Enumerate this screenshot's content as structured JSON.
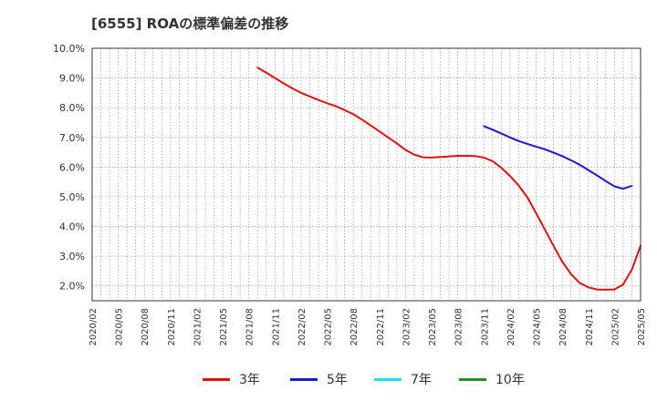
{
  "chart_data": {
    "type": "line",
    "title": "[6555]  ROAの標準偏差の推移",
    "xlabel": "",
    "ylabel": "",
    "ylim": [
      1.5,
      10.0
    ],
    "yticks": [
      2.0,
      3.0,
      4.0,
      5.0,
      6.0,
      7.0,
      8.0,
      9.0,
      10.0
    ],
    "ytick_labels": [
      "2.0%",
      "3.0%",
      "4.0%",
      "5.0%",
      "6.0%",
      "7.0%",
      "8.0%",
      "9.0%",
      "10.0%"
    ],
    "x_range": [
      "2020/02",
      "2025/05"
    ],
    "xtick_labels": [
      "2020/02",
      "2020/05",
      "2020/08",
      "2020/11",
      "2021/02",
      "2021/05",
      "2021/08",
      "2021/11",
      "2022/02",
      "2022/05",
      "2022/08",
      "2022/11",
      "2023/02",
      "2023/05",
      "2023/08",
      "2023/11",
      "2024/02",
      "2024/05",
      "2024/08",
      "2024/11",
      "2025/02",
      "2025/05"
    ],
    "grid": true,
    "legend_position": "bottom",
    "series": [
      {
        "name": "3年",
        "color": "#dd1111",
        "points": [
          [
            "2021/09",
            9.35
          ],
          [
            "2021/10",
            9.18
          ],
          [
            "2021/11",
            9.0
          ],
          [
            "2021/12",
            8.82
          ],
          [
            "2022/01",
            8.65
          ],
          [
            "2022/02",
            8.5
          ],
          [
            "2022/03",
            8.38
          ],
          [
            "2022/04",
            8.26
          ],
          [
            "2022/05",
            8.15
          ],
          [
            "2022/06",
            8.05
          ],
          [
            "2022/07",
            7.92
          ],
          [
            "2022/08",
            7.78
          ],
          [
            "2022/09",
            7.6
          ],
          [
            "2022/10",
            7.4
          ],
          [
            "2022/11",
            7.2
          ],
          [
            "2022/12",
            7.0
          ],
          [
            "2023/01",
            6.8
          ],
          [
            "2023/02",
            6.58
          ],
          [
            "2023/03",
            6.42
          ],
          [
            "2023/04",
            6.33
          ],
          [
            "2023/05",
            6.32
          ],
          [
            "2023/06",
            6.34
          ],
          [
            "2023/07",
            6.36
          ],
          [
            "2023/08",
            6.38
          ],
          [
            "2023/09",
            6.38
          ],
          [
            "2023/10",
            6.37
          ],
          [
            "2023/11",
            6.32
          ],
          [
            "2023/12",
            6.2
          ],
          [
            "2024/01",
            5.98
          ],
          [
            "2024/02",
            5.7
          ],
          [
            "2024/03",
            5.38
          ],
          [
            "2024/04",
            4.98
          ],
          [
            "2024/05",
            4.45
          ],
          [
            "2024/06",
            3.9
          ],
          [
            "2024/07",
            3.35
          ],
          [
            "2024/08",
            2.82
          ],
          [
            "2024/09",
            2.4
          ],
          [
            "2024/10",
            2.1
          ],
          [
            "2024/11",
            1.95
          ],
          [
            "2024/12",
            1.88
          ],
          [
            "2025/01",
            1.87
          ],
          [
            "2025/02",
            1.88
          ],
          [
            "2025/03",
            2.05
          ],
          [
            "2025/04",
            2.55
          ],
          [
            "2025/05",
            3.35
          ]
        ]
      },
      {
        "name": "5年",
        "color": "#1a1acc",
        "points": [
          [
            "2023/11",
            7.38
          ],
          [
            "2023/12",
            7.26
          ],
          [
            "2024/01",
            7.13
          ],
          [
            "2024/02",
            7.0
          ],
          [
            "2024/03",
            6.88
          ],
          [
            "2024/04",
            6.78
          ],
          [
            "2024/05",
            6.69
          ],
          [
            "2024/06",
            6.6
          ],
          [
            "2024/07",
            6.49
          ],
          [
            "2024/08",
            6.37
          ],
          [
            "2024/09",
            6.23
          ],
          [
            "2024/10",
            6.08
          ],
          [
            "2024/11",
            5.9
          ],
          [
            "2024/12",
            5.72
          ],
          [
            "2025/01",
            5.53
          ],
          [
            "2025/02",
            5.35
          ],
          [
            "2025/03",
            5.27
          ],
          [
            "2025/04",
            5.37
          ]
        ]
      },
      {
        "name": "7年",
        "color": "#22ddee",
        "points": []
      },
      {
        "name": "10年",
        "color": "#2a8a2a",
        "points": []
      }
    ]
  }
}
